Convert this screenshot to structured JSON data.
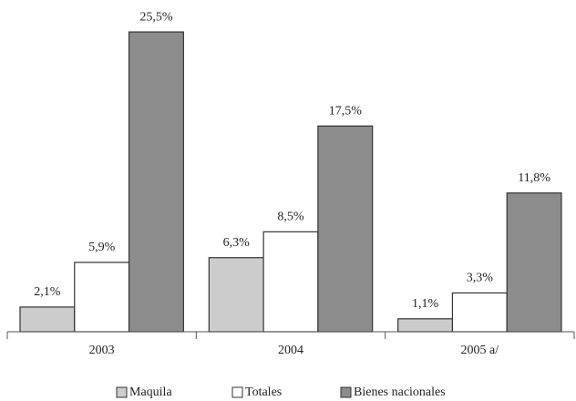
{
  "chart_data": {
    "type": "bar",
    "categories": [
      "2003",
      "2004",
      "2005 a/"
    ],
    "series": [
      {
        "name": "Maquila",
        "color": "#cccccc",
        "values": [
          2.1,
          6.3,
          1.1
        ],
        "value_labels": [
          "2,1%",
          "6,3%",
          "1,1%"
        ]
      },
      {
        "name": "Totales",
        "color": "#ffffff",
        "values": [
          5.9,
          8.5,
          3.3
        ],
        "value_labels": [
          "5,9%",
          "8,5%",
          "3,3%"
        ]
      },
      {
        "name": "Bienes nacionales",
        "color": "#8c8c8c",
        "values": [
          25.5,
          17.5,
          11.8
        ],
        "value_labels": [
          "25,5%",
          "17,5%",
          "11,8%"
        ]
      }
    ],
    "legend": "bottom"
  }
}
